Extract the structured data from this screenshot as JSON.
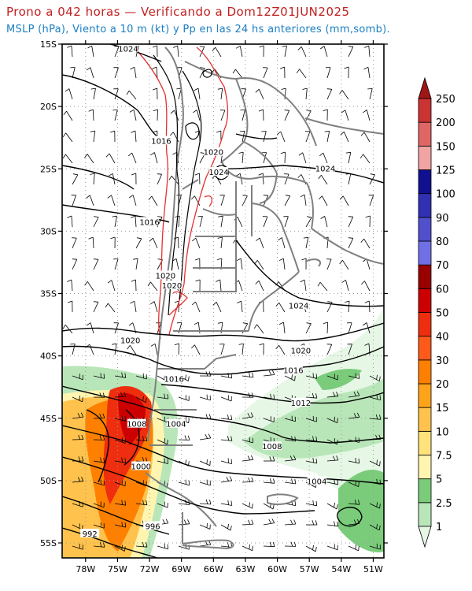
{
  "header": {
    "title": "Prono a 042 horas — Verificando a Dom12Z01JUN2025",
    "subtitle": "MSLP (hPa), Viento a 10 m (kt) y Pp en las 24 hs anteriores (mm,somb)."
  },
  "map": {
    "lat_ticks": [
      "15S",
      "20S",
      "25S",
      "30S",
      "35S",
      "40S",
      "45S",
      "50S",
      "55S"
    ],
    "lon_ticks": [
      "78W",
      "75W",
      "72W",
      "69W",
      "66W",
      "63W",
      "60W",
      "57W",
      "54W",
      "51W"
    ],
    "isobar_labels": [
      {
        "text": "1024",
        "lon": -74.0,
        "lat": -15.4
      },
      {
        "text": "1016",
        "lon": -70.9,
        "lat": -22.8
      },
      {
        "text": "1020",
        "lon": -66.0,
        "lat": -23.7
      },
      {
        "text": "1024",
        "lon": -65.5,
        "lat": -25.3
      },
      {
        "text": "1024",
        "lon": -55.5,
        "lat": -25.0
      },
      {
        "text": "1016",
        "lon": -72.0,
        "lat": -29.3
      },
      {
        "text": "1020",
        "lon": -70.5,
        "lat": -33.6
      },
      {
        "text": "1020",
        "lon": -69.9,
        "lat": -34.4
      },
      {
        "text": "1024",
        "lon": -58.0,
        "lat": -36.0
      },
      {
        "text": "1020",
        "lon": -73.8,
        "lat": -38.8
      },
      {
        "text": "1020",
        "lon": -57.8,
        "lat": -39.6
      },
      {
        "text": "1016",
        "lon": -58.5,
        "lat": -41.2
      },
      {
        "text": "1016",
        "lon": -69.7,
        "lat": -41.9
      },
      {
        "text": "1012",
        "lon": -57.8,
        "lat": -43.8
      },
      {
        "text": "1008",
        "lon": -73.2,
        "lat": -45.5
      },
      {
        "text": "1004",
        "lon": -69.5,
        "lat": -45.5
      },
      {
        "text": "1008",
        "lon": -60.5,
        "lat": -47.3
      },
      {
        "text": "1000",
        "lon": -72.8,
        "lat": -48.9
      },
      {
        "text": "1004",
        "lon": -56.3,
        "lat": -50.1
      },
      {
        "text": "996",
        "lon": -71.7,
        "lat": -53.7
      },
      {
        "text": "992",
        "lon": -77.6,
        "lat": -54.3
      }
    ]
  },
  "colorbar": {
    "levels": [
      "1",
      "2.5",
      "5",
      "7.5",
      "10",
      "15",
      "20",
      "30",
      "40",
      "50",
      "60",
      "70",
      "80",
      "90",
      "100",
      "125",
      "150",
      "200",
      "250"
    ],
    "colors": [
      "#e6f7e6",
      "#b8e6b8",
      "#7acc7a",
      "#fff5b0",
      "#ffe27a",
      "#ffc34d",
      "#ffa31a",
      "#ff8000",
      "#ff5a1a",
      "#ee2e0e",
      "#cc0000",
      "#990000",
      "#7070e6",
      "#5050cc",
      "#3030b3",
      "#101090",
      "#f2a3a3",
      "#e06666",
      "#cc3333",
      "#a01515"
    ]
  },
  "colors": {
    "title": "#c02020",
    "subtitle": "#1a7fc1",
    "borders": "#808080",
    "topo": "#e53030",
    "isobars": "#000000",
    "grid": "#999999"
  }
}
